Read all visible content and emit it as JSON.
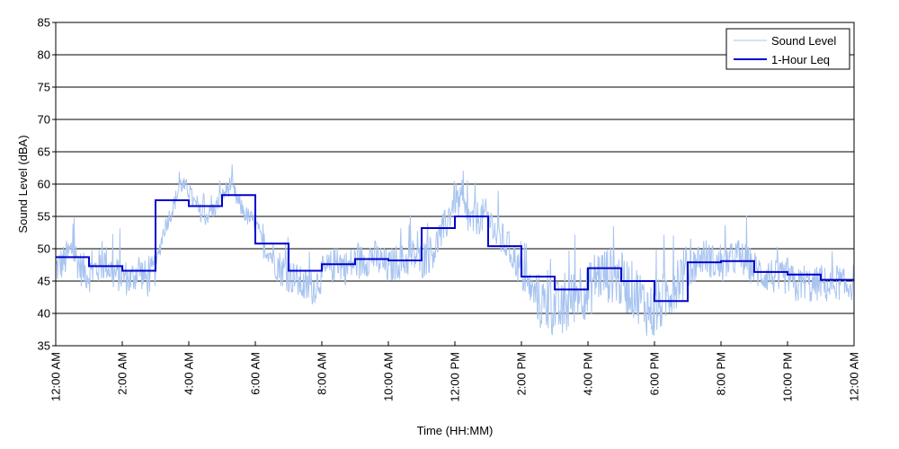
{
  "chart_data": {
    "type": "line",
    "title": "",
    "xlabel": "Time (HH:MM)",
    "ylabel": "Sound Level (dBA)",
    "ylim": [
      35,
      85
    ],
    "yticks": [
      35,
      40,
      45,
      50,
      55,
      60,
      65,
      70,
      75,
      80,
      85
    ],
    "xlim_hours": [
      0,
      24
    ],
    "xticks": [
      {
        "hour": 0,
        "label": "12:00 AM"
      },
      {
        "hour": 2,
        "label": "2:00 AM"
      },
      {
        "hour": 4,
        "label": "4:00 AM"
      },
      {
        "hour": 6,
        "label": "6:00 AM"
      },
      {
        "hour": 8,
        "label": "8:00 AM"
      },
      {
        "hour": 10,
        "label": "10:00 AM"
      },
      {
        "hour": 12,
        "label": "12:00 PM"
      },
      {
        "hour": 14,
        "label": "2:00 PM"
      },
      {
        "hour": 16,
        "label": "4:00 PM"
      },
      {
        "hour": 18,
        "label": "6:00 PM"
      },
      {
        "hour": 20,
        "label": "8:00 PM"
      },
      {
        "hour": 22,
        "label": "10:00 PM"
      },
      {
        "hour": 24,
        "label": "12:00 AM"
      }
    ],
    "grid": "horizontal",
    "legend_position": "top-right",
    "series": [
      {
        "name": "Sound Level",
        "color": "#a8c4f0",
        "x_hours": [
          0,
          0.25,
          0.5,
          0.75,
          1,
          1.25,
          1.5,
          1.75,
          2,
          2.25,
          2.5,
          2.75,
          3,
          3.25,
          3.5,
          3.75,
          4,
          4.25,
          4.5,
          4.75,
          5,
          5.25,
          5.5,
          5.75,
          6,
          6.25,
          6.5,
          6.75,
          7,
          7.25,
          7.5,
          7.75,
          8,
          8.25,
          8.5,
          8.75,
          9,
          9.25,
          9.5,
          9.75,
          10,
          10.25,
          10.5,
          10.75,
          11,
          11.25,
          11.5,
          11.75,
          12,
          12.25,
          12.5,
          12.75,
          13,
          13.25,
          13.5,
          13.75,
          14,
          14.25,
          14.5,
          14.75,
          15,
          15.25,
          15.5,
          15.75,
          16,
          16.25,
          16.5,
          16.75,
          17,
          17.25,
          17.5,
          17.75,
          18,
          18.25,
          18.5,
          18.75,
          19,
          19.25,
          19.5,
          19.75,
          20,
          20.25,
          20.5,
          20.75,
          21,
          21.25,
          21.5,
          21.75,
          22,
          22.25,
          22.5,
          22.75,
          23,
          23.25,
          23.5,
          23.75,
          24
        ],
        "values": [
          47,
          48,
          50,
          47,
          46,
          47,
          48,
          46,
          46,
          45,
          47,
          45,
          47,
          53,
          56,
          60,
          59,
          56,
          55,
          56,
          58,
          60,
          57,
          55,
          54,
          50,
          49,
          47,
          46,
          45,
          44,
          44,
          46,
          47,
          48,
          47,
          48,
          48,
          49,
          48,
          47,
          48,
          48,
          49,
          48,
          49,
          51,
          54,
          58,
          56,
          54,
          55,
          55,
          52,
          51,
          49,
          46,
          44,
          42,
          41,
          41,
          40,
          42,
          44,
          43,
          46,
          46,
          46,
          45,
          44,
          43,
          41,
          40,
          42,
          44,
          46,
          46,
          48,
          49,
          48,
          47,
          48,
          49,
          48,
          47,
          46,
          46,
          45,
          46,
          44,
          45,
          44,
          45,
          44,
          45,
          44,
          45
        ]
      },
      {
        "name": "1-Hour Leq",
        "color": "#0000cc",
        "step_edges_hours": [
          0,
          1,
          2,
          3,
          4,
          5,
          6,
          7,
          8,
          9,
          10,
          11,
          12,
          13,
          14,
          15,
          16,
          17,
          18,
          19,
          20,
          21,
          22,
          23,
          24
        ],
        "values": [
          48.7,
          47.3,
          46.6,
          57.5,
          56.6,
          58.3,
          50.8,
          46.6,
          47.6,
          48.4,
          48.2,
          53.2,
          55.0,
          50.4,
          45.7,
          43.7,
          47.0,
          45.0,
          41.9,
          47.9,
          48.1,
          46.4,
          46.0,
          45.2
        ]
      }
    ]
  }
}
